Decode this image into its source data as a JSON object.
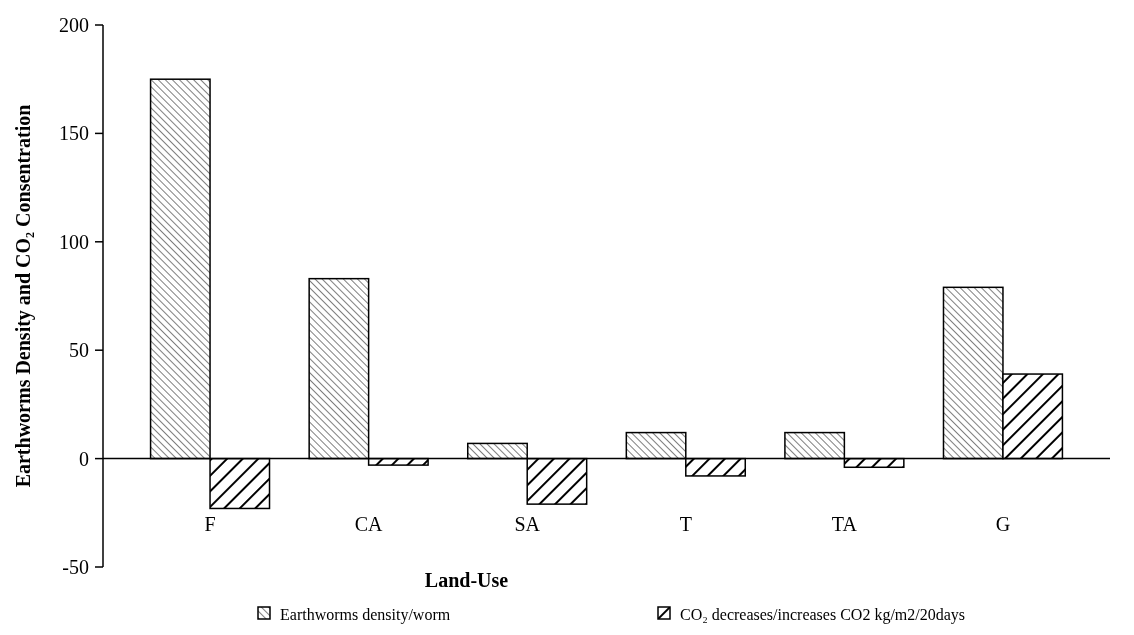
{
  "chart_data": {
    "type": "bar",
    "xlabel": "Land-Use",
    "ylabel": "Earthworms Density and CO₂ Consentration",
    "categories": [
      "F",
      "CA",
      "SA",
      "T",
      "TA",
      "G"
    ],
    "series": [
      {
        "name": "Earthworms density/worm",
        "color": "#000000",
        "values": [
          175,
          83,
          7,
          12,
          12,
          79
        ]
      },
      {
        "name": "CO₂ decreases/increases  CO2  kg/m2/20days",
        "color": "#000000",
        "values": [
          -23,
          -3,
          -21,
          -8,
          -4,
          39
        ]
      }
    ],
    "ylim": [
      -50,
      200
    ],
    "yticks": [
      -50,
      0,
      50,
      100,
      150,
      200
    ],
    "legend": "bottom"
  }
}
